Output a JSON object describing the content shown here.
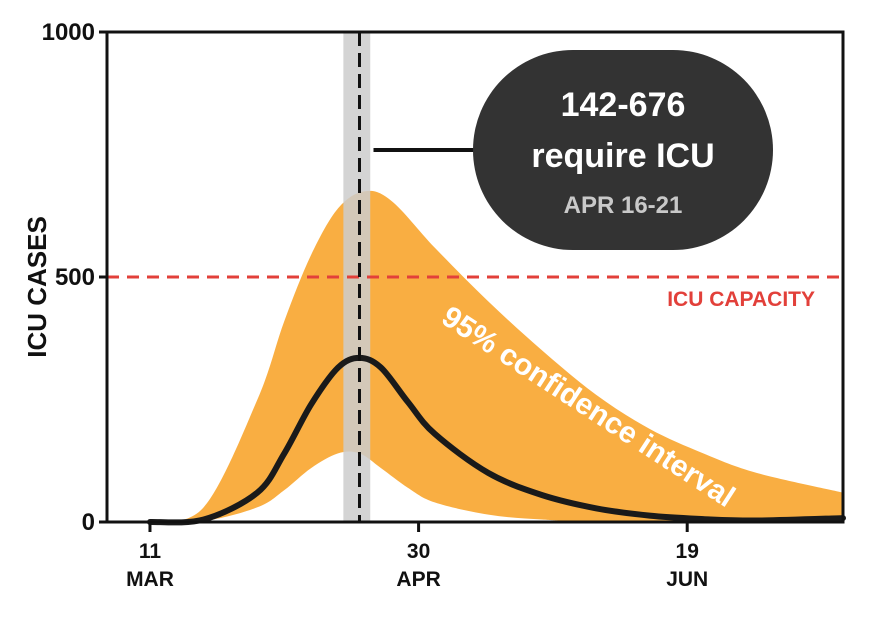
{
  "chart_data": {
    "type": "area",
    "ylabel": "ICU CASES",
    "ylim": [
      0,
      1000
    ],
    "y_ticks": [
      "1000",
      "500",
      "0"
    ],
    "x_ticks": [
      {
        "day": "11",
        "month": "MAR"
      },
      {
        "day": "30",
        "month": "APR"
      },
      {
        "day": "19",
        "month": "JUN"
      }
    ],
    "x_range": [
      "2020-03-03",
      "2020-07-18"
    ],
    "series": [
      {
        "role": "median",
        "x": [
          "2020-03-11",
          "2020-03-21",
          "2020-03-31",
          "2020-04-05",
          "2020-04-10",
          "2020-04-15",
          "2020-04-19",
          "2020-04-23",
          "2020-04-28",
          "2020-05-03",
          "2020-05-13",
          "2020-05-23",
          "2020-06-02",
          "2020-06-12",
          "2020-06-22",
          "2020-07-02",
          "2020-07-18"
        ],
        "values": [
          0,
          5,
          60,
          140,
          240,
          315,
          335,
          315,
          245,
          180,
          100,
          55,
          28,
          13,
          6,
          3,
          8
        ]
      },
      {
        "role": "ci-upper",
        "name": "95% confidence interval",
        "x": [
          "2020-03-11",
          "2020-03-21",
          "2020-03-31",
          "2020-04-05",
          "2020-04-10",
          "2020-04-15",
          "2020-04-20",
          "2020-04-25",
          "2020-05-03",
          "2020-05-13",
          "2020-05-23",
          "2020-06-02",
          "2020-06-12",
          "2020-06-22",
          "2020-07-02",
          "2020-07-18"
        ],
        "values": [
          0,
          30,
          250,
          410,
          545,
          640,
          675,
          655,
          560,
          450,
          350,
          260,
          190,
          140,
          100,
          60
        ]
      },
      {
        "role": "ci-lower",
        "x": [
          "2020-03-11",
          "2020-03-21",
          "2020-03-31",
          "2020-04-05",
          "2020-04-10",
          "2020-04-15",
          "2020-04-19",
          "2020-04-23",
          "2020-04-28",
          "2020-05-03",
          "2020-05-13",
          "2020-05-23",
          "2020-06-02",
          "2020-07-18"
        ],
        "values": [
          0,
          2,
          30,
          65,
          110,
          140,
          140,
          110,
          70,
          40,
          15,
          5,
          2,
          0
        ]
      }
    ],
    "capacity": {
      "label": "ICU CAPACITY",
      "value": 500
    },
    "peak_band": {
      "start": "2020-04-16",
      "end": "2020-04-21",
      "marker": "2020-04-19"
    },
    "callout": {
      "line1": "142-676",
      "line2": "require ICU",
      "line3": "APR 16-21"
    },
    "band_label": "95% confidence interval",
    "colors": {
      "band": "#f9ae42",
      "median": "#1a1a1a",
      "capacity": "#e2403a",
      "peak_band": "#cccccc",
      "callout_bg": "#333333"
    },
    "grid": false,
    "legend": "none"
  }
}
